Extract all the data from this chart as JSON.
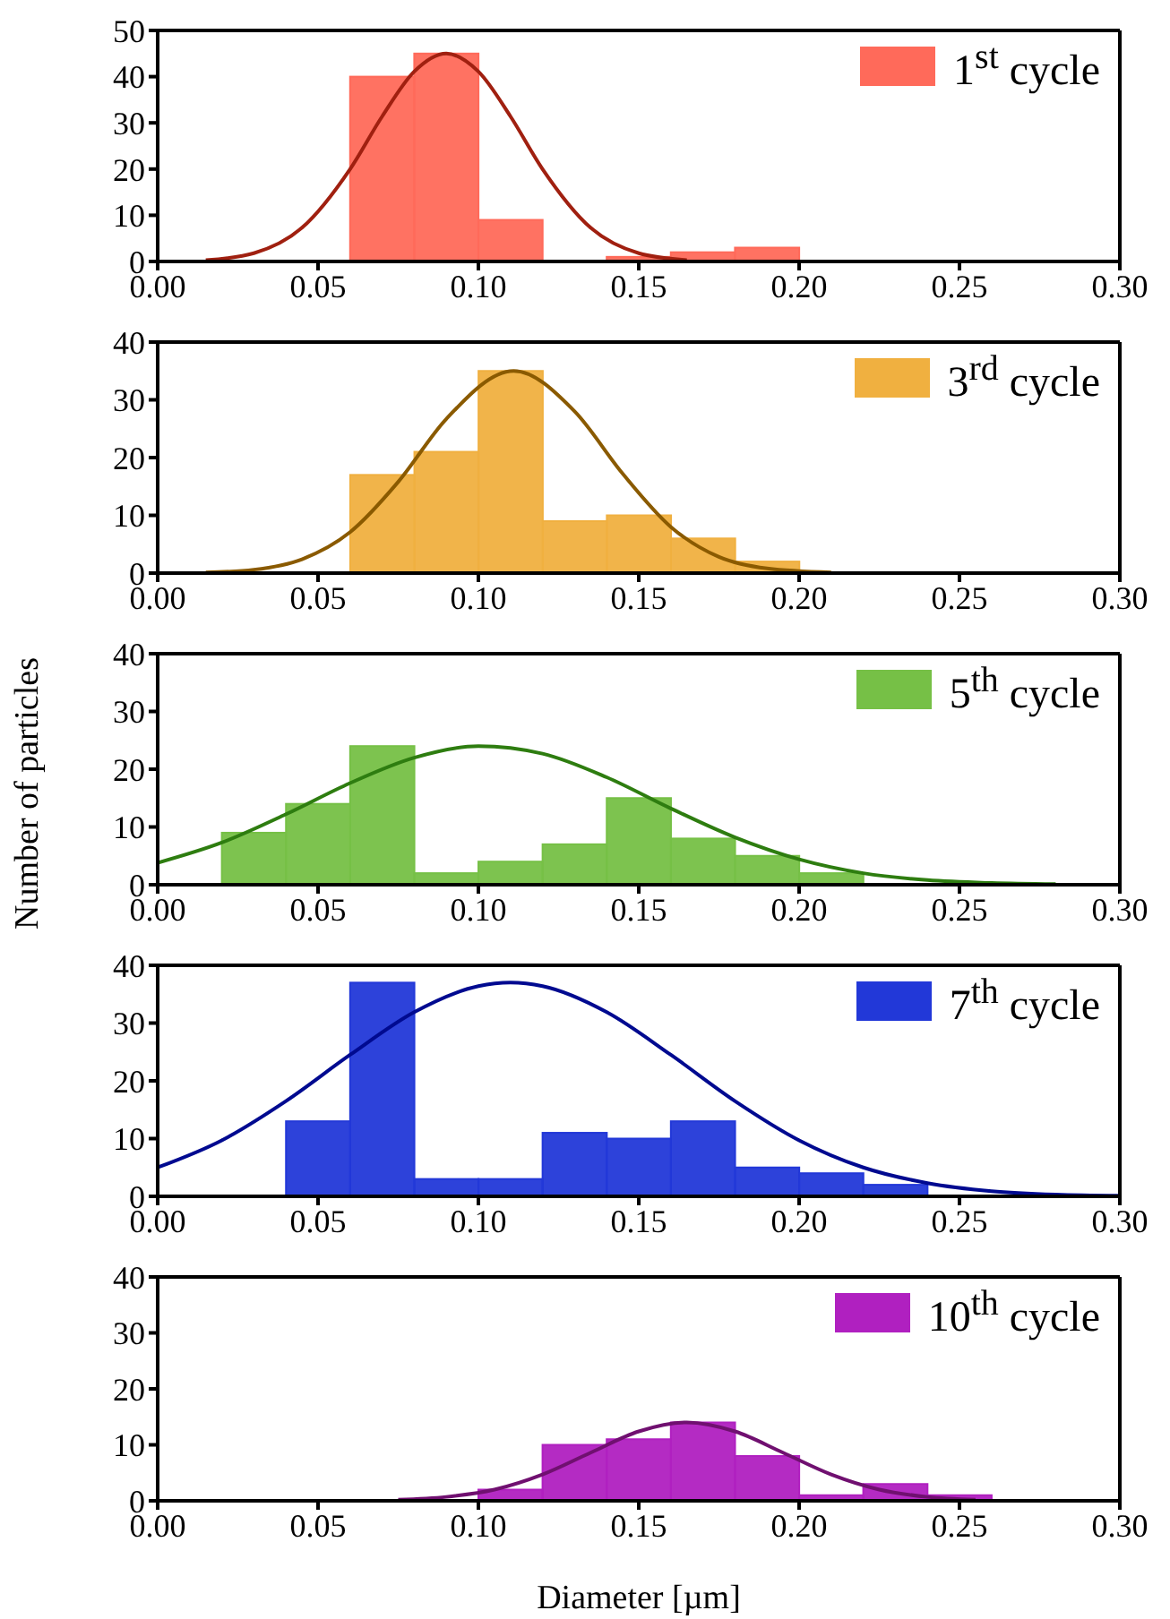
{
  "chart_data": [
    {
      "type": "histogram",
      "legend": "top right",
      "grid": false,
      "ylim": [
        0,
        50
      ],
      "yticks": [
        0,
        10,
        20,
        30,
        40,
        50
      ],
      "xlim": [
        0,
        0.3
      ],
      "xticks": [
        {
          "value": 0,
          "label": "0.00"
        },
        {
          "value": 0.05,
          "label": "0.05"
        },
        {
          "value": 0.1,
          "label": "0.10"
        },
        {
          "value": 0.15,
          "label": "0.15"
        },
        {
          "value": 0.2,
          "label": "0.20"
        },
        {
          "value": 0.25,
          "label": "0.25"
        },
        {
          "value": 0.3,
          "label": "0.30"
        }
      ],
      "series": [
        {
          "name": "1$^{st}$ cycle",
          "color": "#ff6a5a",
          "bins": [
            0.06,
            0.08,
            0.1,
            0.12,
            0.14,
            0.16,
            0.18,
            0.2
          ],
          "values": [
            40,
            45,
            9,
            0,
            1,
            2,
            3
          ]
        },
        {
          "type": "line",
          "color": "#a02010",
          "marker": "none",
          "line_style": "solid",
          "x": [
            0.015,
            0.03,
            0.045,
            0.06,
            0.07,
            0.08,
            0.09,
            0.1,
            0.11,
            0.12,
            0.135,
            0.15,
            0.165
          ],
          "values": [
            0.3,
            1.8,
            7.3,
            20,
            31.4,
            41.1,
            45,
            41.1,
            31.4,
            20,
            7.3,
            1.8,
            0.3
          ]
        }
      ]
    },
    {
      "type": "histogram",
      "legend": "top right",
      "grid": false,
      "ylim": [
        0,
        40
      ],
      "yticks": [
        0,
        10,
        20,
        30,
        40
      ],
      "xlim": [
        0,
        0.3
      ],
      "xticks": [
        {
          "value": 0,
          "label": "0.00"
        },
        {
          "value": 0.05,
          "label": "0.05"
        },
        {
          "value": 0.1,
          "label": "0.10"
        },
        {
          "value": 0.15,
          "label": "0.15"
        },
        {
          "value": 0.2,
          "label": "0.20"
        },
        {
          "value": 0.25,
          "label": "0.25"
        },
        {
          "value": 0.3,
          "label": "0.30"
        }
      ],
      "series": [
        {
          "name": "3$^{rd}$ cycle",
          "color": "#f0b040",
          "bins": [
            0.06,
            0.08,
            0.1,
            0.12,
            0.14,
            0.16,
            0.18,
            0.2
          ],
          "values": [
            17,
            21,
            35,
            9,
            10,
            6,
            2
          ]
        },
        {
          "type": "line",
          "color": "#8a5a00",
          "marker": "none",
          "line_style": "solid",
          "x": [
            0.015,
            0.03,
            0.045,
            0.06,
            0.075,
            0.09,
            0.111,
            0.13,
            0.145,
            0.16,
            0.175,
            0.19,
            0.21
          ],
          "values": [
            0.1,
            0.6,
            2.4,
            7.1,
            15.8,
            26.7,
            35,
            28,
            17.2,
            8,
            2.8,
            0.8,
            0.1
          ]
        }
      ]
    },
    {
      "type": "histogram",
      "legend": "top right",
      "grid": false,
      "ylabel": "Number of particles",
      "ylim": [
        0,
        40
      ],
      "yticks": [
        0,
        10,
        20,
        30,
        40
      ],
      "xlim": [
        0,
        0.3
      ],
      "xticks": [
        {
          "value": 0,
          "label": "0.00"
        },
        {
          "value": 0.05,
          "label": "0.05"
        },
        {
          "value": 0.1,
          "label": "0.10"
        },
        {
          "value": 0.15,
          "label": "0.15"
        },
        {
          "value": 0.2,
          "label": "0.20"
        },
        {
          "value": 0.25,
          "label": "0.25"
        },
        {
          "value": 0.3,
          "label": "0.30"
        }
      ],
      "series": [
        {
          "name": "5$^{th}$ cycle",
          "color": "#76c046",
          "bins": [
            0.02,
            0.04,
            0.06,
            0.08,
            0.1,
            0.12,
            0.14,
            0.16,
            0.18,
            0.2,
            0.22
          ],
          "values": [
            9,
            14,
            24,
            2,
            4,
            7,
            15,
            8,
            5,
            2
          ]
        },
        {
          "type": "line",
          "color": "#2e7d10",
          "marker": "none",
          "line_style": "solid",
          "x": [
            0,
            0.02,
            0.04,
            0.06,
            0.08,
            0.1,
            0.12,
            0.14,
            0.16,
            0.18,
            0.2,
            0.22,
            0.24,
            0.26,
            0.28
          ],
          "values": [
            3.8,
            7.3,
            12.2,
            17.6,
            22,
            24,
            22.7,
            18.6,
            13.2,
            8.2,
            4.4,
            2,
            0.8,
            0.3,
            0.1
          ]
        }
      ]
    },
    {
      "type": "histogram",
      "legend": "top right",
      "grid": false,
      "ylim": [
        0,
        40
      ],
      "yticks": [
        0,
        10,
        20,
        30,
        40
      ],
      "xlim": [
        0,
        0.3
      ],
      "xticks": [
        {
          "value": 0,
          "label": "0.00"
        },
        {
          "value": 0.05,
          "label": "0.05"
        },
        {
          "value": 0.1,
          "label": "0.10"
        },
        {
          "value": 0.15,
          "label": "0.15"
        },
        {
          "value": 0.2,
          "label": "0.20"
        },
        {
          "value": 0.25,
          "label": "0.25"
        },
        {
          "value": 0.3,
          "label": "0.30"
        }
      ],
      "series": [
        {
          "name": "7$^{th}$ cycle",
          "color": "#2238d8",
          "bins": [
            0.04,
            0.06,
            0.08,
            0.1,
            0.12,
            0.14,
            0.16,
            0.18,
            0.2,
            0.22,
            0.24
          ],
          "values": [
            13,
            37,
            3,
            3,
            11,
            10,
            13,
            5,
            4,
            2
          ]
        },
        {
          "type": "line",
          "color": "#000a90",
          "marker": "none",
          "line_style": "solid",
          "x": [
            0,
            0.02,
            0.04,
            0.06,
            0.08,
            0.1,
            0.11,
            0.12,
            0.14,
            0.16,
            0.18,
            0.2,
            0.22,
            0.24,
            0.26,
            0.28,
            0.3
          ],
          "values": [
            5,
            9.7,
            16.5,
            24.5,
            31.9,
            36.4,
            37,
            36.4,
            31.9,
            24.5,
            16.5,
            9.7,
            5,
            2.3,
            0.9,
            0.3,
            0.1
          ]
        }
      ]
    },
    {
      "type": "histogram",
      "legend": "top right",
      "grid": false,
      "xlabel": "Diameter [µm]",
      "ylim": [
        0,
        40
      ],
      "yticks": [
        0,
        10,
        20,
        30,
        40
      ],
      "xlim": [
        0,
        0.3
      ],
      "xticks": [
        {
          "value": 0,
          "label": "0.00"
        },
        {
          "value": 0.05,
          "label": "0.05"
        },
        {
          "value": 0.1,
          "label": "0.10"
        },
        {
          "value": 0.15,
          "label": "0.15"
        },
        {
          "value": 0.2,
          "label": "0.20"
        },
        {
          "value": 0.25,
          "label": "0.25"
        },
        {
          "value": 0.3,
          "label": "0.30"
        }
      ],
      "series": [
        {
          "name": "10$^{th}$ cycle",
          "color": "#b020c0",
          "bins": [
            0.1,
            0.12,
            0.14,
            0.16,
            0.18,
            0.2,
            0.22,
            0.24,
            0.26
          ],
          "values": [
            2,
            10,
            11,
            14,
            8,
            1,
            3,
            1
          ]
        },
        {
          "type": "line",
          "color": "#701070",
          "marker": "none",
          "line_style": "solid",
          "x": [
            0.075,
            0.09,
            0.105,
            0.12,
            0.135,
            0.15,
            0.165,
            0.18,
            0.195,
            0.21,
            0.225,
            0.24,
            0.255
          ],
          "values": [
            0.2,
            0.7,
            2,
            4.7,
            8.6,
            12.4,
            14,
            12.4,
            8.6,
            4.7,
            2,
            0.7,
            0.2
          ]
        }
      ]
    }
  ]
}
